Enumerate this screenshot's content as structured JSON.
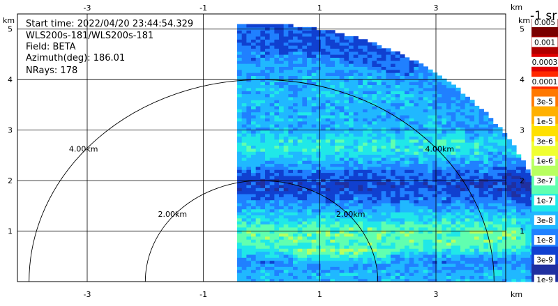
{
  "chart_data": {
    "type": "heatmap",
    "subtype": "lidar-ppi-sector-scan",
    "info": {
      "start_time": "Start time: 2022/04/20 23:44:54.329",
      "instrument": "WLS200s-181/WLS200s-181",
      "field": "Field: BETA",
      "azimuth": "Azimuth(deg): 186.01",
      "nrays": "NRays: 178"
    },
    "unit_corner": "km",
    "units_label": "-1 sr",
    "x_ticks": [
      "-3",
      "-1",
      "1",
      "3"
    ],
    "x_tick_values": [
      -3,
      -1,
      1,
      3
    ],
    "y_ticks": [
      "1",
      "2",
      "3",
      "4",
      "5"
    ],
    "y_tick_values": [
      1,
      2,
      3,
      4,
      5
    ],
    "xlim": [
      -4.2,
      4.2
    ],
    "ylim": [
      0,
      5.3
    ],
    "range_rings": [
      {
        "radius_km": 2,
        "label": "2.00km"
      },
      {
        "radius_km": 4,
        "label": "4.00km"
      }
    ],
    "sector": {
      "azimuth_from_deg": 0,
      "azimuth_to_deg": 90,
      "max_range_km": 5.1
    },
    "colorbar": {
      "labels": [
        "0.005",
        "0.001",
        "0.0003",
        "0.0001",
        "3e-5",
        "1e-5",
        "3e-6",
        "1e-6",
        "3e-7",
        "1e-7",
        "3e-8",
        "1e-8",
        "3e-9",
        "1e-9"
      ],
      "colors": [
        "#7a0000",
        "#b00000",
        "#e00000",
        "#ff2800",
        "#ff7800",
        "#ffb000",
        "#ffe000",
        "#f0ff30",
        "#b8ff60",
        "#60ffb0",
        "#20e8e8",
        "#20b8ff",
        "#2080ff",
        "#1040d0",
        "#2030a0"
      ]
    },
    "height_profile": {
      "y_km": [
        0.0,
        0.2,
        0.4,
        0.6,
        0.8,
        1.0,
        1.2,
        1.4,
        1.6,
        1.8,
        2.0,
        2.2,
        2.4,
        2.6,
        2.8,
        3.0,
        3.3,
        3.6,
        4.0,
        4.5,
        5.1
      ],
      "color_index": [
        11,
        11,
        12,
        10,
        9,
        9,
        10,
        11,
        12,
        13,
        13,
        12,
        11,
        10,
        10,
        11,
        11,
        11,
        11,
        12,
        12
      ]
    }
  }
}
